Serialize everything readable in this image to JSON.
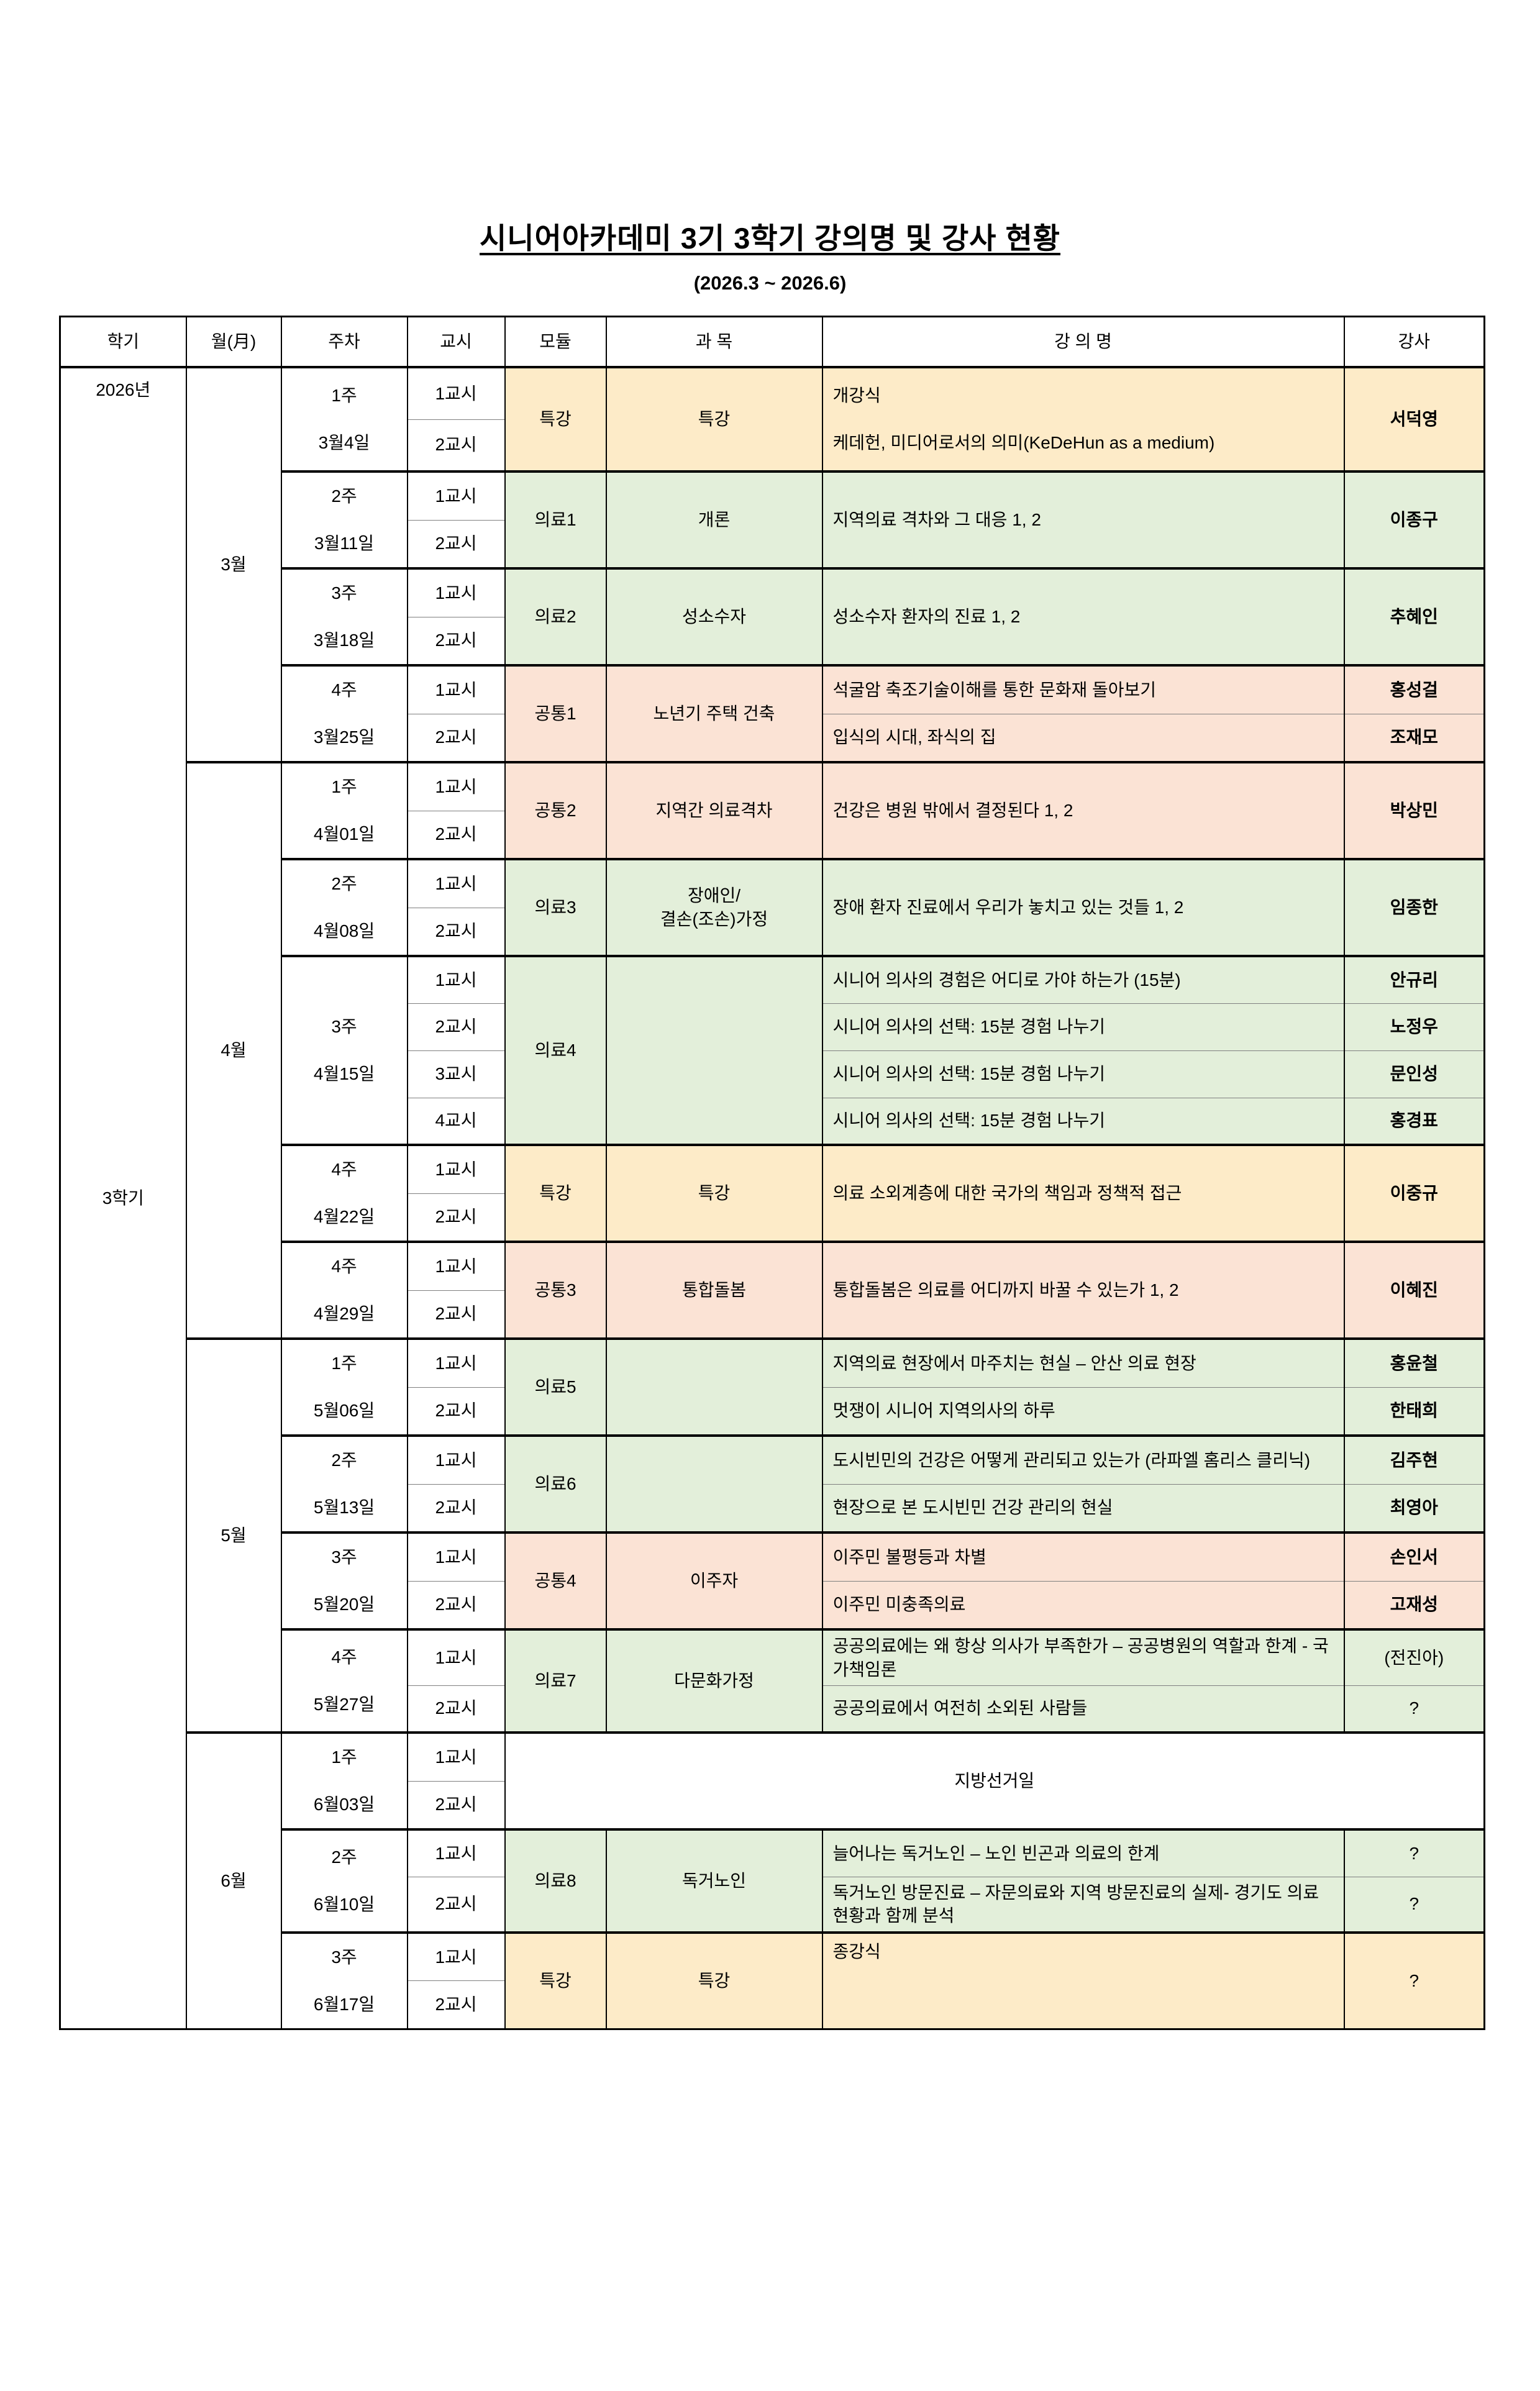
{
  "page": {
    "title": "시니어아카데미 3기 3학기 강의명 및 강사 현황",
    "subtitle": "(2026.3 ~ 2026.6)"
  },
  "table": {
    "headers": [
      "학기",
      "월(月)",
      "주차",
      "교시",
      "모듈",
      "과  목",
      "강  의  명",
      "강사"
    ],
    "semester": {
      "year": "2026년",
      "label": "3학기"
    },
    "colors": {
      "special": "#FDEBC8",
      "medical": "#E3EFDA",
      "common": "#FBE3D5",
      "plain": "#FFFFFF"
    },
    "months": [
      {
        "label": "3월",
        "weeks": [
          {
            "week": "1주",
            "date": "3월4일",
            "periods": [
              "1교시",
              "2교시"
            ],
            "module": "특강",
            "subject": "특강",
            "color": "special",
            "entries": [
              {
                "lines": [
                  "개강식",
                  "케데헌, 미디어로서의 의미(KeDeHun as a medium)"
                ],
                "span": 2,
                "spread": true,
                "instructor": "서덕영",
                "bold": true
              }
            ]
          },
          {
            "week": "2주",
            "date": "3월11일",
            "periods": [
              "1교시",
              "2교시"
            ],
            "module": "의료1",
            "subject": "개론",
            "color": "medical",
            "entries": [
              {
                "lines": [
                  "지역의료 격차와 그 대응 1, 2"
                ],
                "span": 2,
                "instructor": "이종구",
                "bold": true
              }
            ]
          },
          {
            "week": "3주",
            "date": "3월18일",
            "periods": [
              "1교시",
              "2교시"
            ],
            "module": "의료2",
            "subject": "성소수자",
            "color": "medical",
            "entries": [
              {
                "lines": [
                  "성소수자 환자의 진료 1, 2"
                ],
                "span": 2,
                "instructor": "추혜인",
                "bold": true
              }
            ]
          },
          {
            "week": "4주",
            "date": "3월25일",
            "periods": [
              "1교시",
              "2교시"
            ],
            "module": "공통1",
            "subject": "노년기 주택 건축",
            "color": "common",
            "entries": [
              {
                "lines": [
                  "석굴암 축조기술이해를 통한 문화재 돌아보기"
                ],
                "span": 1,
                "instructor": "홍성걸",
                "bold": true
              },
              {
                "lines": [
                  "입식의 시대, 좌식의 집"
                ],
                "span": 1,
                "instructor": "조재모",
                "bold": true
              }
            ]
          }
        ]
      },
      {
        "label": "4월",
        "weeks": [
          {
            "week": "1주",
            "date": "4월01일",
            "periods": [
              "1교시",
              "2교시"
            ],
            "module": "공통2",
            "subject": "지역간 의료격차",
            "color": "common",
            "entries": [
              {
                "lines": [
                  "건강은 병원 밖에서 결정된다 1, 2"
                ],
                "span": 2,
                "instructor": "박상민",
                "bold": true
              }
            ]
          },
          {
            "week": "2주",
            "date": "4월08일",
            "periods": [
              "1교시",
              "2교시"
            ],
            "module": "의료3",
            "subject": "장애인/\n결손(조손)가정",
            "color": "medical",
            "entries": [
              {
                "lines": [
                  "장애 환자 진료에서 우리가 놓치고 있는 것들 1, 2"
                ],
                "span": 2,
                "instructor": "임종한",
                "bold": true
              }
            ]
          },
          {
            "week": "3주",
            "date": "4월15일",
            "periods": [
              "1교시",
              "2교시",
              "3교시",
              "4교시"
            ],
            "module": "의료4",
            "subject": "",
            "color": "medical",
            "entries": [
              {
                "lines": [
                  "시니어 의사의 경험은 어디로 가야 하는가 (15분)"
                ],
                "span": 1,
                "instructor": "안규리",
                "bold": true
              },
              {
                "lines": [
                  "시니어 의사의 선택: 15분 경험 나누기"
                ],
                "span": 1,
                "instructor": "노정우",
                "bold": true
              },
              {
                "lines": [
                  "시니어 의사의 선택: 15분 경험 나누기"
                ],
                "span": 1,
                "instructor": "문인성",
                "bold": true
              },
              {
                "lines": [
                  "시니어 의사의 선택: 15분 경험 나누기"
                ],
                "span": 1,
                "instructor": "홍경표",
                "bold": true
              }
            ]
          },
          {
            "week": "4주",
            "date": "4월22일",
            "periods": [
              "1교시",
              "2교시"
            ],
            "module": "특강",
            "subject": "특강",
            "color": "special",
            "entries": [
              {
                "lines": [
                  "의료 소외계층에 대한 국가의 책임과 정책적 접근"
                ],
                "span": 2,
                "instructor": "이중규",
                "bold": true
              }
            ]
          },
          {
            "week": "4주",
            "date": "4월29일",
            "periods": [
              "1교시",
              "2교시"
            ],
            "module": "공통3",
            "subject": "통합돌봄",
            "color": "common",
            "entries": [
              {
                "lines": [
                  "통합돌봄은 의료를 어디까지 바꿀 수 있는가 1, 2"
                ],
                "span": 2,
                "instructor": "이혜진",
                "bold": true
              }
            ]
          }
        ]
      },
      {
        "label": "5월",
        "weeks": [
          {
            "week": "1주",
            "date": "5월06일",
            "periods": [
              "1교시",
              "2교시"
            ],
            "module": "의료5",
            "subject": "",
            "color": "medical",
            "entries": [
              {
                "lines": [
                  "지역의료 현장에서 마주치는 현실 – 안산 의료 현장"
                ],
                "span": 1,
                "instructor": "홍윤철",
                "bold": true
              },
              {
                "lines": [
                  "멋쟁이 시니어 지역의사의 하루"
                ],
                "span": 1,
                "instructor": "한태희",
                "bold": true
              }
            ]
          },
          {
            "week": "2주",
            "date": "5월13일",
            "periods": [
              "1교시",
              "2교시"
            ],
            "module": "의료6",
            "subject": "",
            "color": "medical",
            "entries": [
              {
                "lines": [
                  "도시빈민의 건강은 어떻게 관리되고 있는가 (라파엘 홈리스 클리닉)"
                ],
                "span": 1,
                "instructor": "김주현",
                "bold": true
              },
              {
                "lines": [
                  "현장으로 본 도시빈민 건강 관리의 현실"
                ],
                "span": 1,
                "instructor": "최영아",
                "bold": true
              }
            ]
          },
          {
            "week": "3주",
            "date": "5월20일",
            "periods": [
              "1교시",
              "2교시"
            ],
            "module": "공통4",
            "subject": "이주자",
            "color": "common",
            "entries": [
              {
                "lines": [
                  "이주민 불평등과 차별"
                ],
                "span": 1,
                "instructor": "손인서",
                "bold": true
              },
              {
                "lines": [
                  "이주민 미충족의료"
                ],
                "span": 1,
                "instructor": "고재성",
                "bold": true
              }
            ]
          },
          {
            "week": "4주",
            "date": "5월27일",
            "periods": [
              "1교시",
              "2교시"
            ],
            "module": "의료7",
            "subject": "다문화가정",
            "color": "medical",
            "entries": [
              {
                "lines": [
                  "공공의료에는 왜 항상 의사가 부족한가 – 공공병원의 역할과 한계 - 국가책임론"
                ],
                "span": 1,
                "instructor": "(전진아)",
                "bold": false
              },
              {
                "lines": [
                  "공공의료에서 여전히 소외된 사람들"
                ],
                "span": 1,
                "instructor": "?",
                "bold": false
              }
            ]
          }
        ]
      },
      {
        "label": "6월",
        "weeks": [
          {
            "week": "1주",
            "date": "6월03일",
            "periods": [
              "1교시",
              "2교시"
            ],
            "merged_note": "지방선거일"
          },
          {
            "week": "2주",
            "date": "6월10일",
            "periods": [
              "1교시",
              "2교시"
            ],
            "module": "의료8",
            "subject": "독거노인",
            "color": "medical",
            "entries": [
              {
                "lines": [
                  "늘어나는 독거노인 – 노인 빈곤과 의료의 한계"
                ],
                "span": 1,
                "instructor": "?",
                "bold": false
              },
              {
                "lines": [
                  "독거노인 방문진료 – 자문의료와 지역 방문진료의 실제- 경기도 의료현황과 함께 분석"
                ],
                "span": 1,
                "instructor": "?",
                "bold": false
              }
            ]
          },
          {
            "week": "3주",
            "date": "6월17일",
            "periods": [
              "1교시",
              "2교시"
            ],
            "module": "특강",
            "subject": "특강",
            "color": "special",
            "entries": [
              {
                "lines": [
                  "종강식"
                ],
                "span": 2,
                "top": true,
                "instructor": "?",
                "bold": false
              }
            ]
          }
        ]
      }
    ]
  }
}
